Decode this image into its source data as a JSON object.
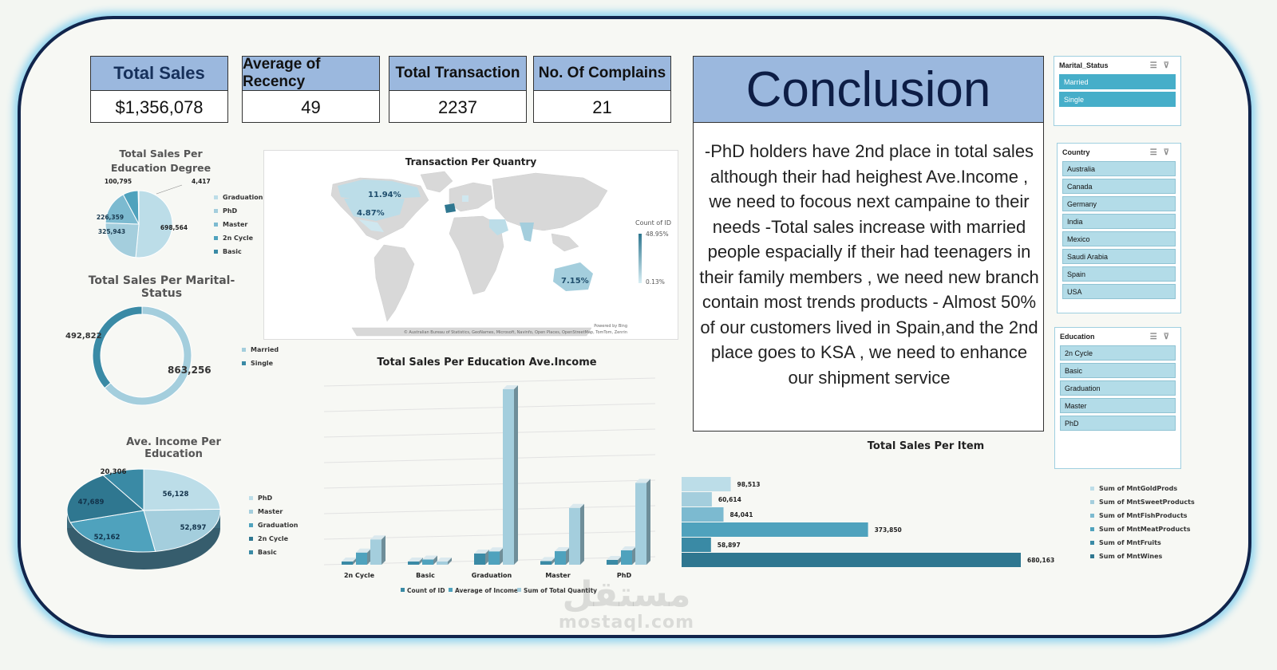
{
  "kpis": [
    {
      "title": "Total Sales",
      "value": "$1,356,078"
    },
    {
      "title": "Average of Recency",
      "value": "49"
    },
    {
      "title": "Total Transaction",
      "value": "2237"
    },
    {
      "title": "No. Of Complains",
      "value": "21"
    }
  ],
  "edu_pie": {
    "title": "Total Sales Per Education Degree",
    "chart_data": {
      "type": "pie",
      "categories": [
        "Graduation",
        "PhD",
        "Master",
        "2n Cycle",
        "Basic"
      ],
      "values": [
        698564,
        325943,
        226359,
        100795,
        4417
      ],
      "labels": [
        "698,564",
        "325,943",
        "226,359",
        "100,795",
        "4,417"
      ]
    },
    "legend": [
      "Graduation",
      "PhD",
      "Master",
      "2n Cycle",
      "Basic"
    ]
  },
  "marital_donut": {
    "title": "Total Sales Per Marital-Status",
    "chart_data": {
      "type": "pie",
      "categories": [
        "Married",
        "Single"
      ],
      "values": [
        863256,
        492822
      ],
      "labels": [
        "863,256",
        "492,822"
      ]
    },
    "legend": [
      "Married",
      "Single"
    ]
  },
  "income_pie": {
    "title": "Ave. Income Per Education",
    "chart_data": {
      "type": "pie",
      "categories": [
        "PhD",
        "Master",
        "Graduation",
        "2n Cycle",
        "Basic"
      ],
      "values": [
        56128,
        52897,
        52162,
        47689,
        20306
      ],
      "labels": [
        "56,128",
        "52,897",
        "52,162",
        "47,689",
        "20,306"
      ]
    },
    "legend": [
      "PhD",
      "Master",
      "Graduation",
      "2n Cycle",
      "Basic"
    ]
  },
  "map": {
    "title": "Transaction Per Quantry",
    "labels": [
      "11.94%",
      "4.87%",
      "7.15%"
    ],
    "legend_title": "Count of ID",
    "legend_max": "48.95%",
    "legend_min": "0.13%",
    "powered": "Powered by Bing",
    "attribution": "© Australian Bureau of Statistics, GeoNames, Microsoft, Navinfo, Open Places, OpenStreetMap, TomTom, Zenrin"
  },
  "col_chart": {
    "title": "Total Sales Per Education Ave.Income",
    "chart_data": {
      "type": "bar",
      "categories": [
        "2n Cycle",
        "Basic",
        "Graduation",
        "Master",
        "PhD"
      ],
      "series": [
        {
          "name": "Count of ID",
          "values": [
            203,
            54,
            1127,
            370,
            486
          ]
        },
        {
          "name": "Average of Income",
          "values": [
            47689,
            20306,
            52162,
            52897,
            56128
          ]
        },
        {
          "name": "Sum of Total Quantity",
          "values": [
            100795,
            4417,
            698564,
            226359,
            325943
          ]
        }
      ]
    }
  },
  "item_chart": {
    "title": "Total Sales Per Item",
    "chart_data": {
      "type": "bar",
      "categories": [
        "Sum of MntGoldProds",
        "Sum of MntSweetProducts",
        "Sum of MntFishProducts",
        "Sum of MntMeatProducts",
        "Sum of MntFruits",
        "Sum of MntWines"
      ],
      "values": [
        98513,
        60614,
        84041,
        373850,
        58897,
        680163
      ],
      "labels": [
        "98,513",
        "60,614",
        "84,041",
        "373,850",
        "58,897",
        "680,163"
      ]
    },
    "legend": [
      "Sum of MntGoldProds",
      "Sum of MntSweetProducts",
      "Sum of MntFishProducts",
      "Sum of MntMeatProducts",
      "Sum of MntFruits",
      "Sum of MntWines"
    ]
  },
  "conclusion": {
    "title": "Conclusion",
    "text": "-PhD holders have 2nd place in total sales although their had heighest Ave.Income , we need to focous next campaine to their needs -Total sales increase with married people espacially if their had teenagers in their family members , we need new branch contain most trends products - Almost 50% of our customers lived in Spain,and the 2nd place goes to KSA , we need to enhance our shipment service"
  },
  "slicers": {
    "marital": {
      "title": "Marital_Status",
      "items": [
        "Married",
        "Single"
      ]
    },
    "country": {
      "title": "Country",
      "items": [
        "Australia",
        "Canada",
        "Germany",
        "India",
        "Mexico",
        "Saudi Arabia",
        "Spain",
        "USA"
      ]
    },
    "education": {
      "title": "Education",
      "items": [
        "2n Cycle",
        "Basic",
        "Graduation",
        "Master",
        "PhD"
      ]
    }
  },
  "watermark": {
    "arabic": "مستقل",
    "latin": "mostaql.com"
  },
  "colors": {
    "c1": "#bcdde8",
    "c2": "#a4cedd",
    "c3": "#7cbad0",
    "c4": "#4fa2bd",
    "c5": "#3a8aa5",
    "c6": "#2f7790",
    "header": "#9bb8de",
    "frame": "#11254c",
    "glow": "#8fd3ee"
  }
}
